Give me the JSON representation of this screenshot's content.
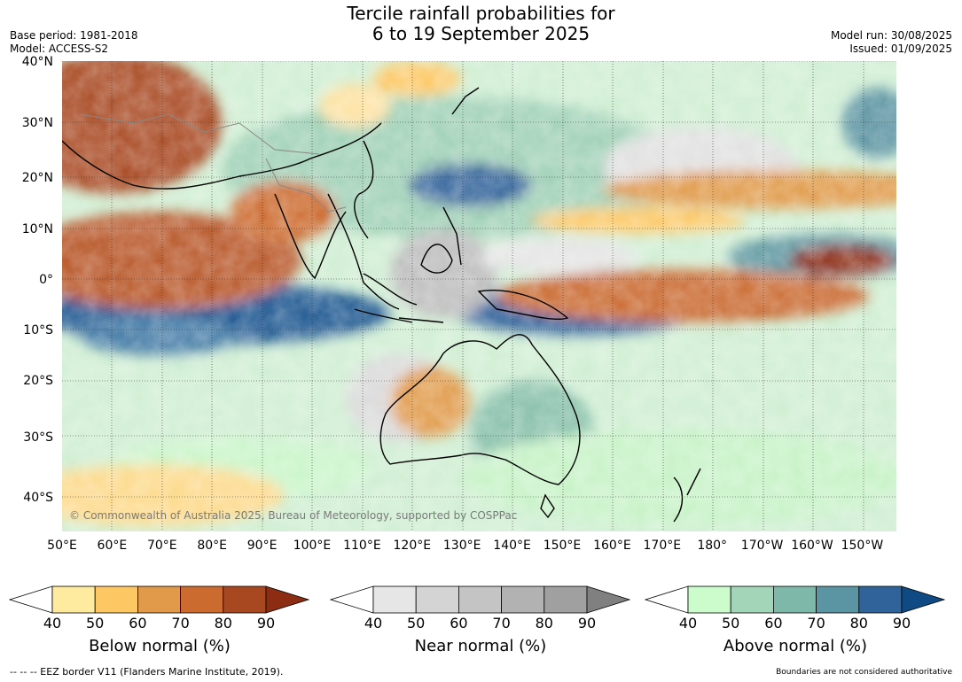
{
  "title": {
    "line1": "Tercile rainfall probabilities for",
    "line2": "6 to 19 September 2025"
  },
  "meta": {
    "base_period": "Base period: 1981-2018",
    "model": "Model: ACCESS-S2",
    "model_run": "Model run: 30/08/2025",
    "issued": "Issued: 01/09/2025"
  },
  "map": {
    "lat_labels": [
      "40°N",
      "30°N",
      "20°N",
      "10°N",
      "0°",
      "10°S",
      "20°S",
      "30°S",
      "40°S"
    ],
    "lon_labels": [
      "50°E",
      "60°E",
      "70°E",
      "80°E",
      "90°E",
      "100°E",
      "110°E",
      "120°E",
      "130°E",
      "140°E",
      "150°E",
      "160°E",
      "170°E",
      "180°",
      "170°W",
      "160°W",
      "150°W"
    ],
    "credit": "© Commonwealth of Australia 2025, Bureau of Meteorology, supported by COSPPac",
    "gridlines": true
  },
  "colorbars": [
    {
      "label": "Below normal (%)",
      "ticks": [
        "40",
        "50",
        "60",
        "70",
        "80",
        "90"
      ],
      "colors": [
        "#ffffff",
        "#feeba0",
        "#fdc764",
        "#e09a4a",
        "#cc6b2f",
        "#a84820",
        "#8c2d13"
      ]
    },
    {
      "label": "Near normal (%)",
      "ticks": [
        "40",
        "50",
        "60",
        "70",
        "80",
        "90"
      ],
      "colors": [
        "#ffffff",
        "#e6e6e6",
        "#d4d4d4",
        "#c4c4c4",
        "#b2b2b2",
        "#a0a0a0",
        "#808080"
      ]
    },
    {
      "label": "Above normal (%)",
      "ticks": [
        "40",
        "50",
        "60",
        "70",
        "80",
        "90"
      ],
      "colors": [
        "#ffffff",
        "#ccfccc",
        "#a3d6b8",
        "#7eb8a8",
        "#5b94a2",
        "#30639a",
        "#0f4a85"
      ]
    }
  ],
  "footer": {
    "eez": "--  --  -- EEZ border V11 (Flanders Marine Institute, 2019).",
    "boundaries": "Boundaries are not considered authoritative"
  }
}
